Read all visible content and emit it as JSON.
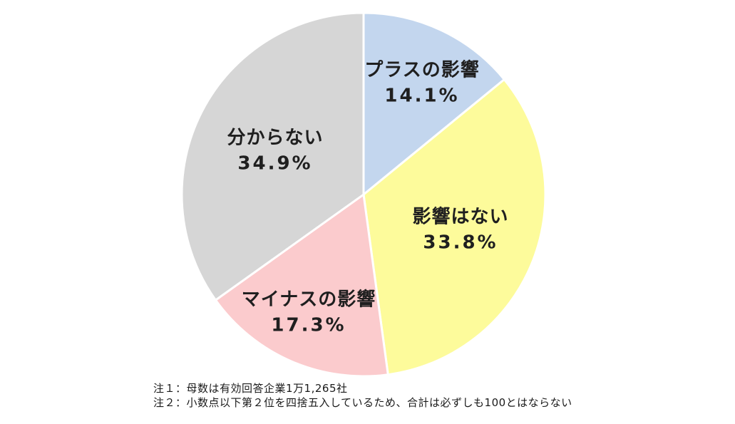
{
  "chart_data": {
    "type": "pie",
    "title": "",
    "categories": [
      "プラスの影響",
      "影響はない",
      "マイナスの影響",
      "分からない"
    ],
    "values": [
      14.1,
      33.8,
      17.3,
      34.9
    ],
    "slices": [
      {
        "label": "プラスの影響",
        "value": 14.1,
        "value_label": "14.1%",
        "color": "#c3d6ee"
      },
      {
        "label": "影響はない",
        "value": 33.8,
        "value_label": "33.8%",
        "color": "#fdfb9b"
      },
      {
        "label": "マイナスの影響",
        "value": 17.3,
        "value_label": "17.3%",
        "color": "#fbcbcd"
      },
      {
        "label": "分からない",
        "value": 34.9,
        "value_label": "34.9%",
        "color": "#d6d6d6"
      }
    ],
    "start_angle_deg": 0,
    "direction": "clockwise",
    "slice_border_color": "#ffffff",
    "label_color": "#1f1f1f",
    "legend": "none",
    "background_color": "#ffffff"
  },
  "notes": {
    "note1": "注１：母数は有効回答企業1万1,265社",
    "note2": "注２：小数点以下第２位を四捨五入しているため、合計は必ずしも100とはならない"
  }
}
